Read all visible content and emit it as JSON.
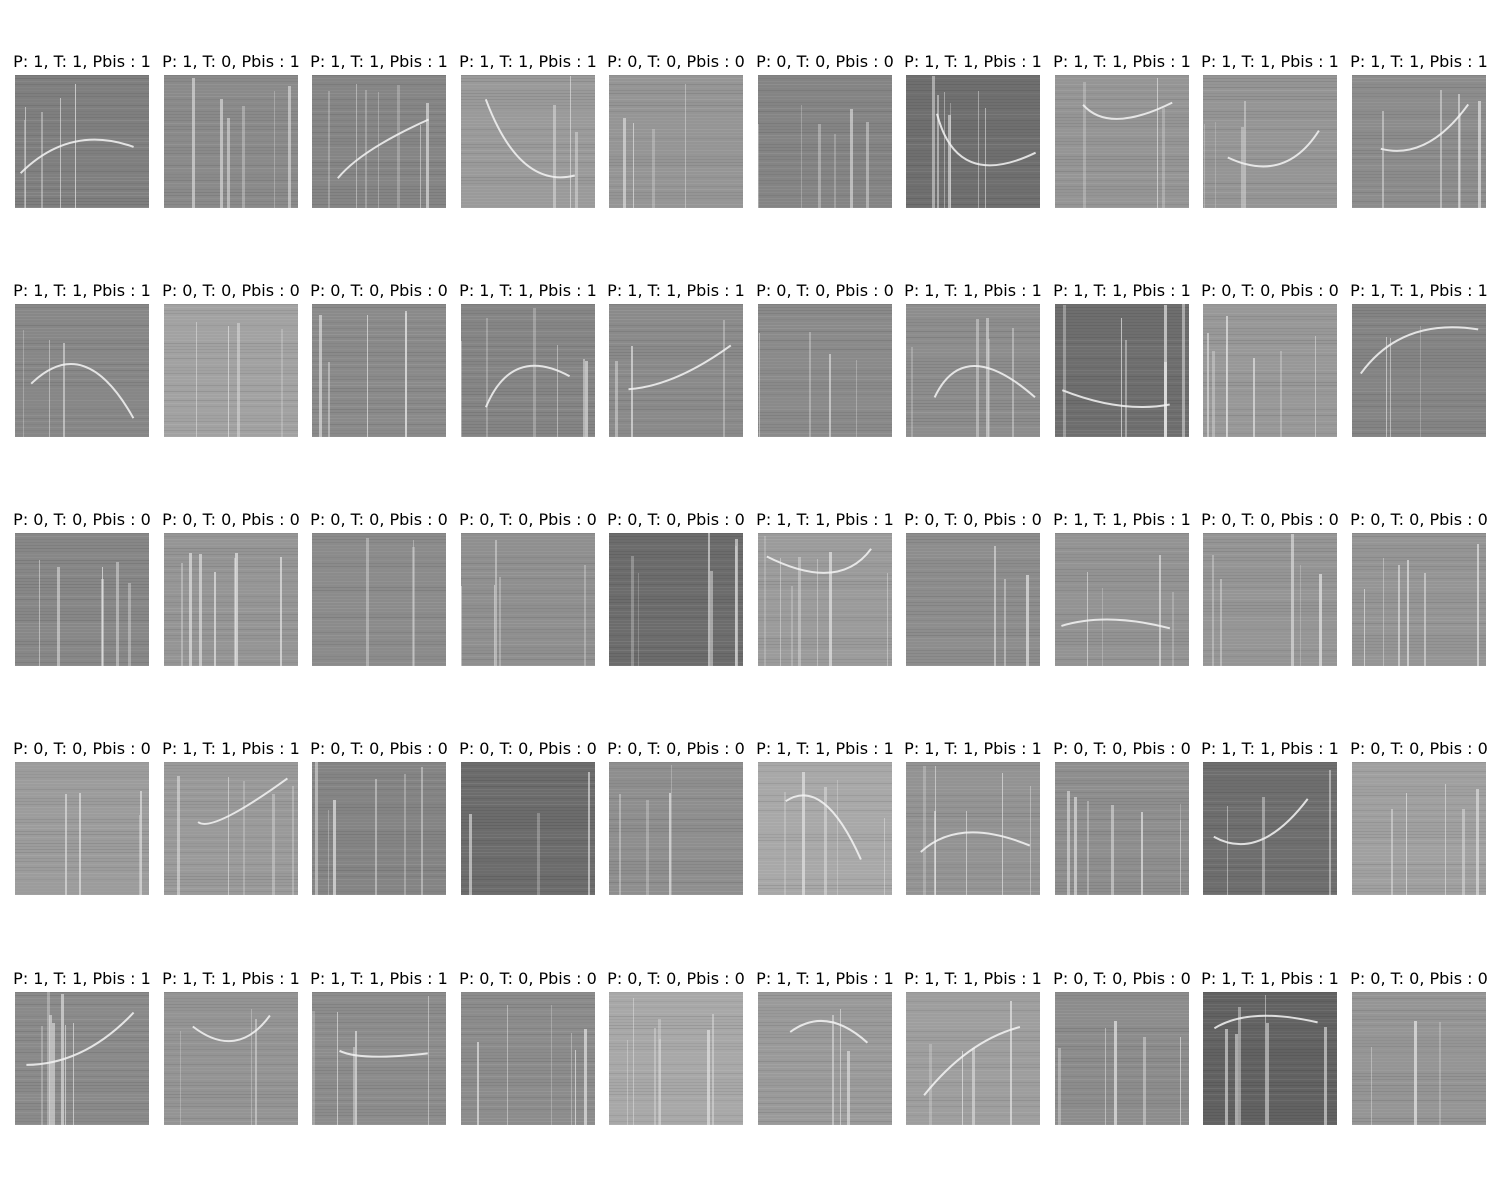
{
  "figure": {
    "rows": [
      [
        {
          "title": "P: 1, T: 1, Pbis : 1",
          "tone": "#7f7f7f",
          "curve": true
        },
        {
          "title": "P: 1, T: 0, Pbis : 1",
          "tone": "#8a8a8a",
          "curve": false
        },
        {
          "title": "P: 1, T: 1, Pbis : 1",
          "tone": "#858585",
          "curve": true
        },
        {
          "title": "P: 1, T: 1, Pbis : 1",
          "tone": "#9a9a9a",
          "curve": true
        },
        {
          "title": "P: 0, T: 0, Pbis : 0",
          "tone": "#959595",
          "curve": false
        },
        {
          "title": "P: 0, T: 0, Pbis : 0",
          "tone": "#848484",
          "curve": false
        },
        {
          "title": "P: 1, T: 1, Pbis : 1",
          "tone": "#6f6f6f",
          "curve": true
        },
        {
          "title": "P: 1, T: 1, Pbis : 1",
          "tone": "#959595",
          "curve": true
        },
        {
          "title": "P: 1, T: 1, Pbis : 1",
          "tone": "#959595",
          "curve": true
        },
        {
          "title": "P: 1, T: 1, Pbis : 1",
          "tone": "#8c8c8c",
          "curve": true
        }
      ],
      [
        {
          "title": "P: 1, T: 1, Pbis : 1",
          "tone": "#878787",
          "curve": true
        },
        {
          "title": "P: 0, T: 0, Pbis : 0",
          "tone": "#a2a2a2",
          "curve": false
        },
        {
          "title": "P: 0, T: 0, Pbis : 0",
          "tone": "#8a8a8a",
          "curve": false
        },
        {
          "title": "P: 1, T: 1, Pbis : 1",
          "tone": "#858585",
          "curve": true
        },
        {
          "title": "P: 1, T: 1, Pbis : 1",
          "tone": "#8a8a8a",
          "curve": true
        },
        {
          "title": "P: 0, T: 0, Pbis : 0",
          "tone": "#8a8a8a",
          "curve": false
        },
        {
          "title": "P: 1, T: 1, Pbis : 1",
          "tone": "#8d8d8d",
          "curve": true
        },
        {
          "title": "P: 1, T: 1, Pbis : 1",
          "tone": "#6e6e6e",
          "curve": true
        },
        {
          "title": "P: 0, T: 0, Pbis : 0",
          "tone": "#989898",
          "curve": false
        },
        {
          "title": "P: 1, T: 1, Pbis : 1",
          "tone": "#848484",
          "curve": true
        }
      ],
      [
        {
          "title": "P: 0, T: 0, Pbis : 0",
          "tone": "#878787",
          "curve": false
        },
        {
          "title": "P: 0, T: 0, Pbis : 0",
          "tone": "#959595",
          "curve": false
        },
        {
          "title": "P: 0, T: 0, Pbis : 0",
          "tone": "#8b8b8b",
          "curve": false
        },
        {
          "title": "P: 0, T: 0, Pbis : 0",
          "tone": "#8f8f8f",
          "curve": false
        },
        {
          "title": "P: 0, T: 0, Pbis : 0",
          "tone": "#6c6c6c",
          "curve": false
        },
        {
          "title": "P: 1, T: 1, Pbis : 1",
          "tone": "#9b9b9b",
          "curve": true
        },
        {
          "title": "P: 0, T: 0, Pbis : 0",
          "tone": "#8d8d8d",
          "curve": false
        },
        {
          "title": "P: 1, T: 1, Pbis : 1",
          "tone": "#939393",
          "curve": true
        },
        {
          "title": "P: 0, T: 0, Pbis : 0",
          "tone": "#959595",
          "curve": false
        },
        {
          "title": "P: 0, T: 0, Pbis : 0",
          "tone": "#959595",
          "curve": false
        }
      ],
      [
        {
          "title": "P: 0, T: 0, Pbis : 0",
          "tone": "#9c9c9c",
          "curve": false
        },
        {
          "title": "P: 1, T: 1, Pbis : 1",
          "tone": "#9a9a9a",
          "curve": true
        },
        {
          "title": "P: 0, T: 0, Pbis : 0",
          "tone": "#848484",
          "curve": false
        },
        {
          "title": "P: 0, T: 0, Pbis : 0",
          "tone": "#6c6c6c",
          "curve": false
        },
        {
          "title": "P: 0, T: 0, Pbis : 0",
          "tone": "#8e8e8e",
          "curve": false
        },
        {
          "title": "P: 1, T: 1, Pbis : 1",
          "tone": "#a8a8a8",
          "curve": true
        },
        {
          "title": "P: 1, T: 1, Pbis : 1",
          "tone": "#939393",
          "curve": true
        },
        {
          "title": "P: 0, T: 0, Pbis : 0",
          "tone": "#8e8e8e",
          "curve": false
        },
        {
          "title": "P: 1, T: 1, Pbis : 1",
          "tone": "#6e6e6e",
          "curve": true
        },
        {
          "title": "P: 0, T: 0, Pbis : 0",
          "tone": "#a0a0a0",
          "curve": false
        }
      ],
      [
        {
          "title": "P: 1, T: 1, Pbis : 1",
          "tone": "#8a8a8a",
          "curve": true
        },
        {
          "title": "P: 1, T: 1, Pbis : 1",
          "tone": "#949494",
          "curve": true
        },
        {
          "title": "P: 1, T: 1, Pbis : 1",
          "tone": "#8c8c8c",
          "curve": true
        },
        {
          "title": "P: 0, T: 0, Pbis : 0",
          "tone": "#8c8c8c",
          "curve": false
        },
        {
          "title": "P: 0, T: 0, Pbis : 0",
          "tone": "#a8a8a8",
          "curve": false
        },
        {
          "title": "P: 1, T: 1, Pbis : 1",
          "tone": "#9a9a9a",
          "curve": true
        },
        {
          "title": "P: 1, T: 1, Pbis : 1",
          "tone": "#9e9e9e",
          "curve": true
        },
        {
          "title": "P: 0, T: 0, Pbis : 0",
          "tone": "#8c8c8c",
          "curve": false
        },
        {
          "title": "P: 1, T: 1, Pbis : 1",
          "tone": "#626262",
          "curve": true
        },
        {
          "title": "P: 0, T: 0, Pbis : 0",
          "tone": "#959595",
          "curve": false
        }
      ]
    ]
  }
}
